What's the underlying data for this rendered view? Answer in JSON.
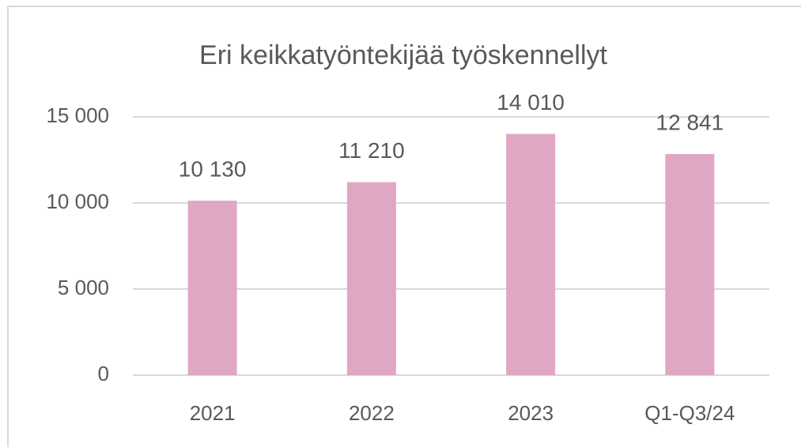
{
  "chart_data": {
    "type": "bar",
    "title": "Eri keikkatyöntekijää työskennellyt",
    "categories": [
      "2021",
      "2022",
      "2023",
      "Q1-Q3/24"
    ],
    "values": [
      10130,
      11210,
      14010,
      12841
    ],
    "value_labels": [
      "10 130",
      "11 210",
      "14 010",
      "12 841"
    ],
    "color": "#e0a7c4",
    "ylim": [
      0,
      15000
    ],
    "yticks": [
      0,
      {
        "value": 5000,
        "label": "5 000"
      },
      {
        "value": 10000,
        "label": "10 000"
      },
      {
        "value": 15000,
        "label": "15 000"
      }
    ],
    "grid": true
  }
}
